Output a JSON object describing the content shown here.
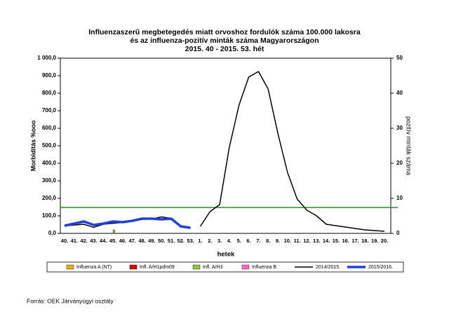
{
  "chart_data": {
    "type": "combo",
    "title": [
      "Influenzaszerű megbetegedés miatt orvoshoz fordulók száma 100.000 lakosra",
      "és az influenza-pozitív minták száma Magyarországon",
      "2015. 40 - 2015. 53. hét"
    ],
    "ylabel": "Morbiditás %ooo",
    "y2label": "pozitív minták száma",
    "xlabel": "hetek",
    "source": "Forrás: OEK Járványügyi osztály",
    "categories": [
      "40.",
      "41.",
      "42.",
      "43.",
      "44.",
      "45.",
      "46.",
      "47.",
      "48.",
      "49.",
      "50.",
      "51.",
      "52.",
      "53.",
      "1.",
      "2.",
      "3.",
      "4.",
      "5.",
      "6.",
      "7.",
      "8.",
      "9.",
      "10.",
      "11.",
      "12.",
      "13.",
      "14.",
      "15.",
      "16.",
      "17.",
      "18.",
      "19.",
      "20."
    ],
    "ylim": [
      0,
      1000
    ],
    "yticks": [
      {
        "value": 0,
        "label": "0,0"
      },
      {
        "value": 100,
        "label": "100,0"
      },
      {
        "value": 200,
        "label": "200,0"
      },
      {
        "value": 300,
        "label": "300,0"
      },
      {
        "value": 400,
        "label": "400,0"
      },
      {
        "value": 500,
        "label": "500,0"
      },
      {
        "value": 600,
        "label": "600,0"
      },
      {
        "value": 700,
        "label": "700,0"
      },
      {
        "value": 800,
        "label": "800,0"
      },
      {
        "value": 900,
        "label": "900,0"
      },
      {
        "value": 1000,
        "label": "1 000,0"
      }
    ],
    "y2lim": [
      0,
      50
    ],
    "y2ticks": [
      0,
      10,
      20,
      30,
      40,
      50
    ],
    "threshold": 148,
    "threshold_color": "#2e8b2e",
    "series": [
      {
        "name": "Influenza A (NT)",
        "type": "bar",
        "axis": "y2",
        "color": "#f2a800",
        "values": [
          0,
          0,
          0,
          0,
          0,
          0,
          0,
          0,
          0,
          0,
          0,
          0,
          0,
          0,
          null,
          null,
          null,
          null,
          null,
          null,
          null,
          null,
          null,
          null,
          null,
          null,
          null,
          null,
          null,
          null,
          null,
          null,
          null,
          null
        ]
      },
      {
        "name": "Infl. A/H1pdm09",
        "type": "bar",
        "axis": "y2",
        "color": "#e00000",
        "values": [
          0,
          0,
          0,
          0,
          0,
          0,
          0,
          0,
          0,
          0,
          0,
          0,
          0,
          0,
          null,
          null,
          null,
          null,
          null,
          null,
          null,
          null,
          null,
          null,
          null,
          null,
          null,
          null,
          null,
          null,
          null,
          null,
          null,
          null
        ]
      },
      {
        "name": "Infl. A/H3",
        "type": "bar",
        "axis": "y2",
        "color": "#8cc63f",
        "values": [
          0,
          0,
          0,
          0,
          0,
          1,
          0,
          0,
          0,
          0,
          0,
          0,
          0,
          0,
          null,
          null,
          null,
          null,
          null,
          null,
          null,
          null,
          null,
          null,
          null,
          null,
          null,
          null,
          null,
          null,
          null,
          null,
          null,
          null
        ]
      },
      {
        "name": "Influenza B",
        "type": "bar",
        "axis": "y2",
        "color": "#ff66cc",
        "values": [
          0,
          0,
          0,
          0,
          0,
          0,
          0,
          0,
          0,
          0,
          0,
          0,
          0,
          0,
          null,
          null,
          null,
          null,
          null,
          null,
          null,
          null,
          null,
          null,
          null,
          null,
          null,
          null,
          null,
          null,
          null,
          null,
          null,
          null
        ]
      },
      {
        "name": "2014/2015.",
        "type": "line",
        "color": "#000000",
        "width": 1.5,
        "values": [
          42,
          48,
          52,
          35,
          52,
          58,
          62,
          70,
          80,
          82,
          94,
          86,
          null,
          null,
          40,
          124,
          164,
          492,
          732,
          892,
          924,
          824,
          572,
          348,
          196,
          132,
          100,
          52,
          44,
          36,
          28,
          20,
          16,
          12
        ]
      },
      {
        "name": "2015/2016.",
        "type": "line",
        "color": "#1f3fe0",
        "width": 3.5,
        "values": [
          44,
          56,
          68,
          48,
          56,
          68,
          64,
          72,
          84,
          84,
          80,
          84,
          40,
          32,
          null,
          null,
          null,
          null,
          null,
          null,
          null,
          null,
          null,
          null,
          null,
          null,
          null,
          null,
          null,
          null,
          null,
          null,
          null,
          null
        ]
      }
    ]
  }
}
